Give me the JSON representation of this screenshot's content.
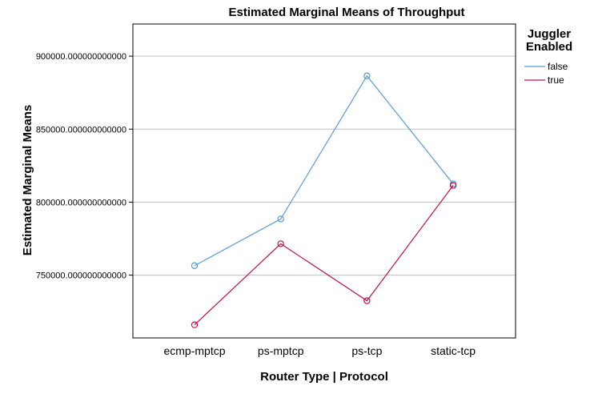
{
  "chart_data": {
    "type": "line",
    "title": "Estimated Marginal Means of Throughput",
    "xlabel": "Router Type | Protocol",
    "ylabel": "Estimated Marginal Means",
    "categories": [
      "ecmp-mptcp",
      "ps-mptcp",
      "ps-tcp",
      "static-tcp"
    ],
    "ylim": [
      707000,
      922000
    ],
    "yticks": [
      750000,
      800000,
      850000,
      900000
    ],
    "ytick_labels": [
      "750000.000000000000",
      "800000.000000000000",
      "850000.000000000000",
      "900000.000000000000"
    ],
    "grid": true,
    "legend": {
      "title_lines": [
        "Juggler",
        "Enabled"
      ],
      "placement": "top-right"
    },
    "series": [
      {
        "name": "false",
        "color": "#5b9bd5",
        "values": [
          756500,
          788500,
          886500,
          812500
        ]
      },
      {
        "name": "true",
        "color": "#c0134a",
        "values": [
          716000,
          771500,
          732500,
          811500
        ]
      }
    ]
  }
}
